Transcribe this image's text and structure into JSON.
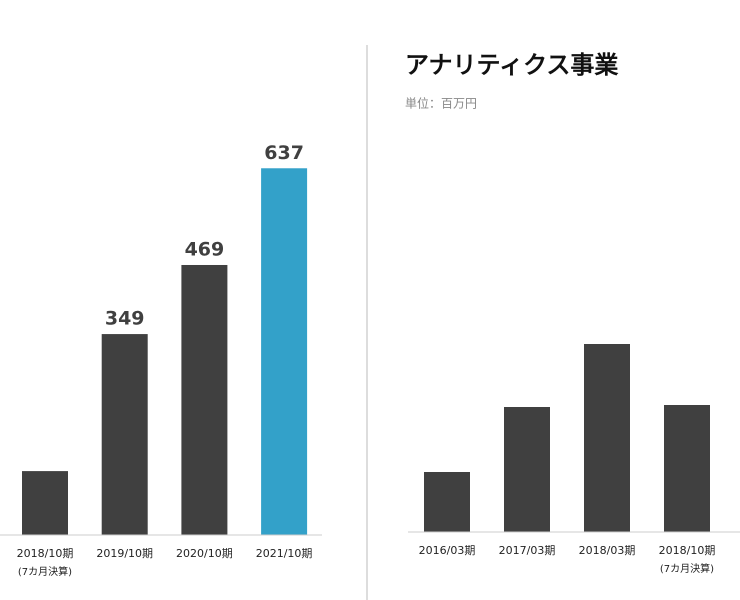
{
  "chart_data": [
    {
      "type": "bar",
      "categories": [
        "2018/10期",
        "2019/10期",
        "2020/10期",
        "2021/10期"
      ],
      "category_notes": [
        "(7カ月決算)",
        null,
        null,
        null
      ],
      "values": [
        111,
        349,
        469,
        637
      ],
      "value_labels": [
        null,
        "349",
        "469",
        "637"
      ],
      "colors": [
        "#404040",
        "#404040",
        "#404040",
        "#33a1c9"
      ],
      "ylim": [
        0,
        700
      ]
    },
    {
      "type": "bar",
      "title": "アナリティクス事業",
      "subtitle": "単位：百万円",
      "categories": [
        "2016/03期",
        "2017/03期",
        "2018/03期",
        "2018/10期"
      ],
      "category_notes": [
        null,
        null,
        null,
        "(7カ月決算)"
      ],
      "values": [
        60,
        125,
        188,
        127
      ],
      "colors": [
        "#404040",
        "#404040",
        "#404040",
        "#404040"
      ],
      "ylim": [
        0,
        220
      ]
    }
  ]
}
